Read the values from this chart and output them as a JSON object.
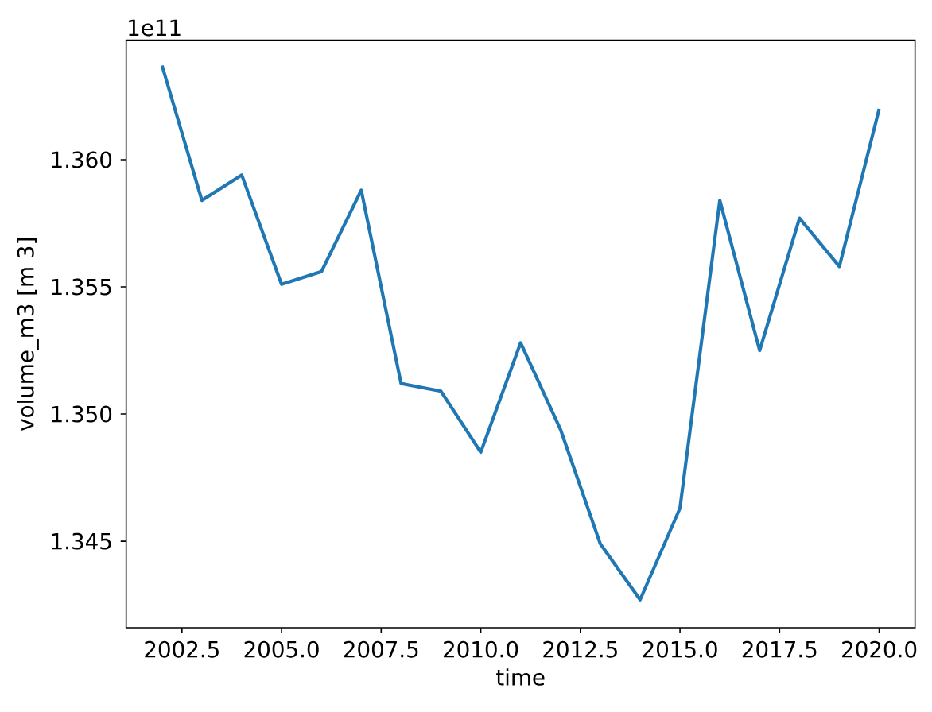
{
  "chart_data": {
    "type": "line",
    "xlabel": "time",
    "ylabel": "volume_m3 [m 3]",
    "annotations": [
      "1e11"
    ],
    "x": [
      2002,
      2003,
      2004,
      2005,
      2006,
      2007,
      2008,
      2009,
      2010,
      2011,
      2012,
      2013,
      2014,
      2015,
      2016,
      2017,
      2018,
      2019,
      2020
    ],
    "series": [
      {
        "color": "#1f77b4",
        "values": [
          1.3637,
          1.3584,
          1.3594,
          1.3551,
          1.3556,
          1.3588,
          1.3512,
          1.3509,
          1.3485,
          1.3528,
          1.3494,
          1.3449,
          1.3427,
          1.3463,
          1.3584,
          1.3525,
          1.3577,
          1.3558,
          1.362
        ]
      }
    ],
    "xlim": [
      2001.1,
      2020.9
    ],
    "ylim": [
      1.3416,
      1.3647
    ],
    "xticks": [
      {
        "value": 2002.5,
        "label": "2002.5"
      },
      {
        "value": 2005,
        "label": "2005.0"
      },
      {
        "value": 2007.5,
        "label": "2007.5"
      },
      {
        "value": 2010,
        "label": "2010.0"
      },
      {
        "value": 2012.5,
        "label": "2012.5"
      },
      {
        "value": 2015,
        "label": "2015.0"
      },
      {
        "value": 2017.5,
        "label": "2017.5"
      },
      {
        "value": 2020,
        "label": "2020.0"
      }
    ],
    "yticks": [
      {
        "value": 1.345,
        "label": "1.345"
      },
      {
        "value": 1.35,
        "label": "1.350"
      },
      {
        "value": 1.355,
        "label": "1.355"
      },
      {
        "value": 1.36,
        "label": "1.360"
      }
    ],
    "grid": false,
    "marker": "none",
    "line_style": "solid"
  }
}
